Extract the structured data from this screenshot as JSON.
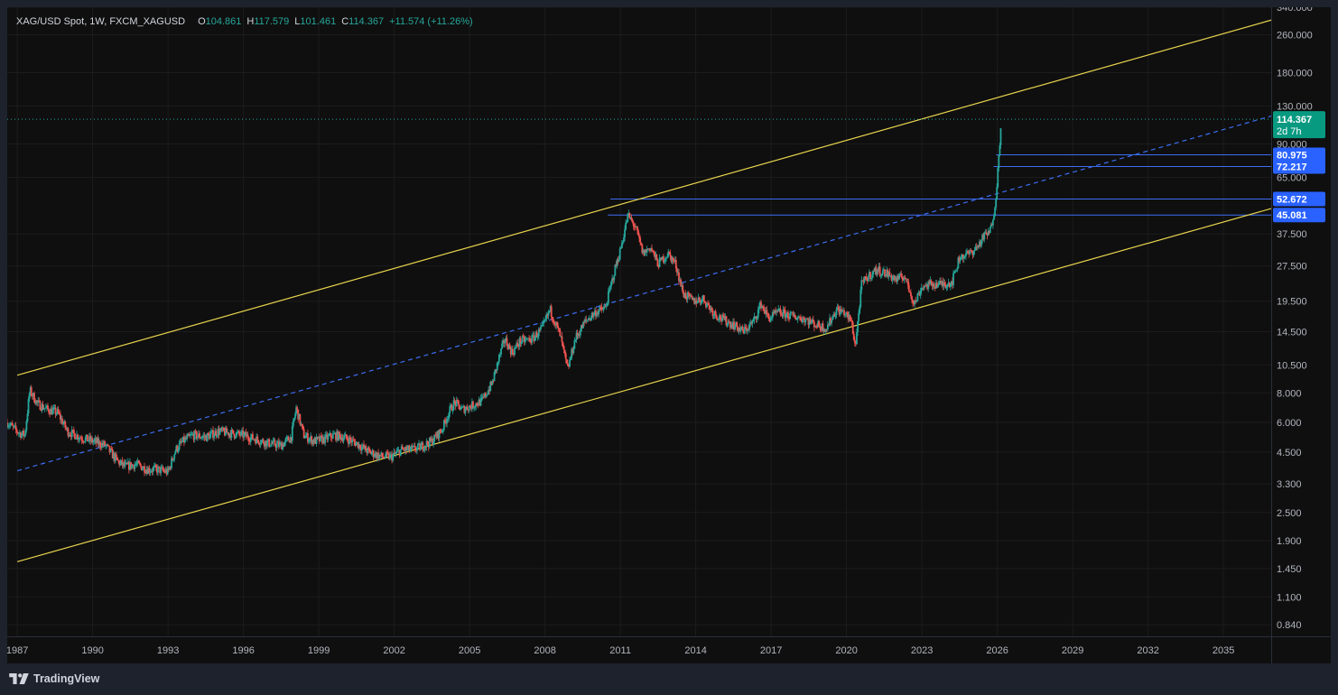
{
  "header": {
    "symbol_title": "XAG/USD Spot, 1W, FXCM_XAGUSD",
    "open_key": "O",
    "open_value": "104.861",
    "high_key": "H",
    "high_value": "117.579",
    "low_key": "L",
    "low_value": "101.461",
    "close_key": "C",
    "close_value": "114.367",
    "change_text": "+11.574 (+11.26%)"
  },
  "footer": {
    "brand": "TradingView"
  },
  "colors": {
    "background": "#0f0f0f",
    "frame": "#1e222d",
    "grid": "#1c1c1c",
    "up": "#26a69a",
    "down": "#ef5350",
    "channel": "#e8d44d",
    "midline": "#3d6df2",
    "level": "#3d6df2",
    "price_tag": "#089981",
    "level_tag": "#2962ff",
    "axis_text": "#b2b5be"
  },
  "chart_data": {
    "type": "line",
    "title": "XAG/USD Spot, 1W, FXCM_XAGUSD",
    "y_scale": "log",
    "ylim": [
      0.75,
      340
    ],
    "xlim": [
      1986.6,
      2036.9
    ],
    "y_ticks": [
      "340.000",
      "260.000",
      "180.000",
      "130.000",
      "90.000",
      "65.000",
      "37.500",
      "27.500",
      "19.500",
      "14.500",
      "10.500",
      "8.000",
      "6.000",
      "4.500",
      "3.300",
      "2.500",
      "1.900",
      "1.450",
      "1.100",
      "0.840"
    ],
    "x_ticks": [
      "1987",
      "1990",
      "1993",
      "1996",
      "1999",
      "2002",
      "2005",
      "2008",
      "2011",
      "2014",
      "2017",
      "2020",
      "2023",
      "2026",
      "2029",
      "2032",
      "2035"
    ],
    "price_series": {
      "name": "XAG/USD",
      "x": [
        1986.6,
        1986.9,
        1987.1,
        1987.3,
        1987.5,
        1987.8,
        1988.2,
        1988.6,
        1989.0,
        1989.5,
        1990.0,
        1990.5,
        1991.0,
        1991.3,
        1991.7,
        1992.2,
        1992.6,
        1993.0,
        1993.3,
        1993.6,
        1994.0,
        1994.5,
        1995.0,
        1995.5,
        1996.0,
        1996.5,
        1997.0,
        1997.5,
        1997.9,
        1998.1,
        1998.4,
        1998.8,
        1999.2,
        1999.6,
        2000.0,
        2000.5,
        2001.0,
        2001.5,
        2001.9,
        2002.3,
        2002.7,
        2003.0,
        2003.5,
        2003.9,
        2004.2,
        2004.4,
        2004.7,
        2005.0,
        2005.5,
        2005.9,
        2006.2,
        2006.4,
        2006.7,
        2007.0,
        2007.5,
        2007.9,
        2008.2,
        2008.6,
        2008.9,
        2009.2,
        2009.6,
        2010.0,
        2010.4,
        2010.8,
        2011.0,
        2011.3,
        2011.6,
        2011.9,
        2012.2,
        2012.5,
        2012.9,
        2013.2,
        2013.5,
        2013.9,
        2014.3,
        2014.7,
        2015.0,
        2015.5,
        2015.9,
        2016.3,
        2016.6,
        2016.9,
        2017.3,
        2017.8,
        2018.3,
        2018.8,
        2019.2,
        2019.6,
        2019.9,
        2020.2,
        2020.35,
        2020.6,
        2020.9,
        2021.2,
        2021.6,
        2022.0,
        2022.3,
        2022.7,
        2023.0,
        2023.4,
        2023.8,
        2024.2,
        2024.5,
        2024.9,
        2025.2,
        2025.5,
        2025.7,
        2025.85,
        2025.95,
        2026.05,
        2026.15
      ],
      "y": [
        6.0,
        5.6,
        5.4,
        5.3,
        8.2,
        7.2,
        6.8,
        6.6,
        5.5,
        5.2,
        5.0,
        4.8,
        4.1,
        3.9,
        4.0,
        3.8,
        3.8,
        3.7,
        4.6,
        5.0,
        5.3,
        5.2,
        5.5,
        5.4,
        5.3,
        5.1,
        4.9,
        4.8,
        5.2,
        6.9,
        5.3,
        5.0,
        5.1,
        5.3,
        5.2,
        4.9,
        4.5,
        4.3,
        4.3,
        4.6,
        4.6,
        4.7,
        5.0,
        5.6,
        6.7,
        7.3,
        6.8,
        7.0,
        7.4,
        8.8,
        11.5,
        13.5,
        11.8,
        13.2,
        13.5,
        15.0,
        18.0,
        14.0,
        10.0,
        13.5,
        16.0,
        17.5,
        18.2,
        27.0,
        32.0,
        45.0,
        40.0,
        31.0,
        33.0,
        28.0,
        31.0,
        28.0,
        21.0,
        19.5,
        20.0,
        17.5,
        16.5,
        15.5,
        14.5,
        16.0,
        19.0,
        16.5,
        17.5,
        16.9,
        16.5,
        15.5,
        15.0,
        18.0,
        17.5,
        16.0,
        12.5,
        23.0,
        25.0,
        26.5,
        25.5,
        24.0,
        25.0,
        19.0,
        22.5,
        23.0,
        23.0,
        23.5,
        30.0,
        31.0,
        33.0,
        37.0,
        38.0,
        45.0,
        55.0,
        75.0,
        114.367
      ]
    },
    "upper_channel": {
      "x": [
        1987.0,
        2036.9
      ],
      "y": [
        9.5,
        300
      ]
    },
    "lower_channel": {
      "x": [
        1987.0,
        2036.9
      ],
      "y": [
        1.55,
        48
      ]
    },
    "mid_line": {
      "x": [
        1987.0,
        2036.9
      ],
      "y": [
        3.75,
        118
      ]
    },
    "current_price": {
      "value": 114.367,
      "label": "114.367",
      "countdown": "2d 7h"
    },
    "levels": [
      {
        "value": 80.975,
        "label": "80.975",
        "x_start": 2025.95
      },
      {
        "value": 72.217,
        "label": "72.217",
        "x_start": 2025.85
      },
      {
        "value": 52.672,
        "label": "52.672",
        "x_start": 2010.6
      },
      {
        "value": 45.081,
        "label": "45.081",
        "x_start": 2010.5
      }
    ]
  }
}
